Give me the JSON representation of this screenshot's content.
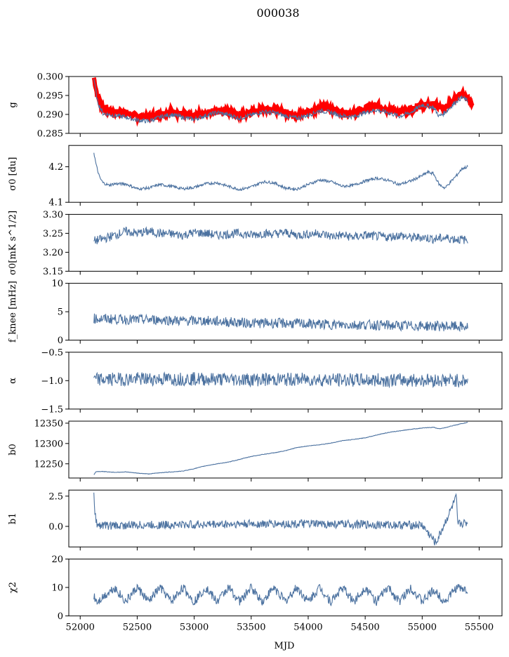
{
  "figure": {
    "title": "000038",
    "xlabel": "MJD",
    "xlim": [
      51900,
      55700
    ],
    "xticks": [
      52000,
      52500,
      53000,
      53500,
      54000,
      54500,
      55000,
      55500
    ],
    "colors": {
      "line": "#4c72a0",
      "overlay": "#ff0000",
      "axes": "#000000"
    }
  },
  "chart_data": [
    {
      "type": "line",
      "ylabel": "g",
      "ylim": [
        0.285,
        0.3
      ],
      "yticks": [
        0.285,
        0.29,
        0.295,
        0.3
      ],
      "ytick_labels": [
        "0.285",
        "0.290",
        "0.295",
        "0.300"
      ],
      "series": [
        {
          "kind": "band",
          "x": [
            52120,
            52150,
            52200,
            52300,
            52400,
            52500,
            52600,
            52700,
            52800,
            52900,
            53000,
            53100,
            53200,
            53300,
            53400,
            53500,
            53600,
            53700,
            53800,
            53900,
            54000,
            54100,
            54200,
            54300,
            54400,
            54500,
            54600,
            54700,
            54800,
            54900,
            55000,
            55100,
            55200,
            55300,
            55350,
            55400,
            55440
          ],
          "y": [
            0.2997,
            0.295,
            0.2915,
            0.2908,
            0.2905,
            0.2895,
            0.2893,
            0.2902,
            0.2908,
            0.29,
            0.2895,
            0.2904,
            0.2912,
            0.2908,
            0.2898,
            0.2905,
            0.2915,
            0.2915,
            0.2905,
            0.2898,
            0.2907,
            0.2918,
            0.2915,
            0.2905,
            0.2902,
            0.2915,
            0.2922,
            0.2915,
            0.2905,
            0.2912,
            0.2925,
            0.2928,
            0.2915,
            0.2945,
            0.2955,
            0.294,
            0.293
          ]
        },
        {
          "kind": "line",
          "x": [
            52120,
            52150,
            52200,
            52300,
            52400,
            52500,
            52600,
            52700,
            52800,
            52900,
            53000,
            53100,
            53200,
            53300,
            53400,
            53500,
            53600,
            53700,
            53800,
            53900,
            54000,
            54100,
            54200,
            54300,
            54400,
            54500,
            54600,
            54700,
            54800,
            54900,
            55000,
            55100,
            55150,
            55200,
            55300,
            55350,
            55400
          ],
          "y": [
            0.2995,
            0.2935,
            0.2903,
            0.2897,
            0.2893,
            0.2885,
            0.2882,
            0.2893,
            0.29,
            0.2892,
            0.2887,
            0.2897,
            0.2905,
            0.2899,
            0.289,
            0.2898,
            0.2907,
            0.2905,
            0.2896,
            0.289,
            0.2898,
            0.291,
            0.2905,
            0.2896,
            0.2894,
            0.2905,
            0.2912,
            0.2905,
            0.2895,
            0.2905,
            0.2925,
            0.2918,
            0.2895,
            0.2905,
            0.2935,
            0.2945,
            0.2935
          ]
        }
      ]
    },
    {
      "type": "line",
      "ylabel": "σ0 [du]",
      "ylim": [
        4.1,
        4.26
      ],
      "yticks": [
        4.1,
        4.2
      ],
      "ytick_labels": [
        "4.1",
        "4.2"
      ],
      "series": [
        {
          "kind": "line",
          "x": [
            52120,
            52140,
            52170,
            52200,
            52250,
            52300,
            52400,
            52500,
            52600,
            52700,
            52800,
            52900,
            53000,
            53100,
            53200,
            53300,
            53400,
            53500,
            53600,
            53700,
            53800,
            53900,
            54000,
            54100,
            54200,
            54300,
            54400,
            54500,
            54600,
            54700,
            54800,
            54900,
            55000,
            55050,
            55100,
            55150,
            55200,
            55300,
            55350,
            55400
          ],
          "y": [
            4.24,
            4.205,
            4.17,
            4.155,
            4.148,
            4.152,
            4.152,
            4.138,
            4.14,
            4.15,
            4.145,
            4.138,
            4.142,
            4.152,
            4.155,
            4.145,
            4.136,
            4.143,
            4.158,
            4.155,
            4.14,
            4.137,
            4.15,
            4.163,
            4.158,
            4.145,
            4.148,
            4.16,
            4.168,
            4.162,
            4.15,
            4.16,
            4.175,
            4.185,
            4.18,
            4.15,
            4.14,
            4.175,
            4.195,
            4.2
          ]
        }
      ]
    },
    {
      "type": "line",
      "ylabel": "σ0[mK s^1/2]",
      "ylim": [
        3.15,
        3.3
      ],
      "yticks": [
        3.15,
        3.2,
        3.25,
        3.3
      ],
      "ytick_labels": [
        "3.15",
        "3.20",
        "3.25",
        "3.30"
      ],
      "series": [
        {
          "kind": "line",
          "x": [
            52120,
            52200,
            52300,
            52400,
            52500,
            52600,
            52700,
            52800,
            52900,
            53000,
            53100,
            53200,
            53300,
            53400,
            53500,
            53600,
            53700,
            53800,
            53900,
            54000,
            54100,
            54200,
            54300,
            54400,
            54500,
            54600,
            54700,
            54800,
            54900,
            55000,
            55100,
            55200,
            55300,
            55400
          ],
          "y": [
            3.23,
            3.235,
            3.245,
            3.255,
            3.25,
            3.255,
            3.25,
            3.248,
            3.245,
            3.252,
            3.25,
            3.245,
            3.248,
            3.25,
            3.245,
            3.25,
            3.248,
            3.252,
            3.245,
            3.248,
            3.25,
            3.242,
            3.245,
            3.24,
            3.245,
            3.242,
            3.24,
            3.245,
            3.238,
            3.24,
            3.235,
            3.238,
            3.235,
            3.232
          ]
        }
      ]
    },
    {
      "type": "line",
      "ylabel": "f_knee [mHz]",
      "ylim": [
        0,
        10
      ],
      "yticks": [
        0,
        5,
        10
      ],
      "ytick_labels": [
        "0",
        "5",
        "10"
      ],
      "series": [
        {
          "kind": "line",
          "x": [
            52120,
            52300,
            52500,
            52700,
            52900,
            53100,
            53300,
            53500,
            53700,
            53900,
            54100,
            54300,
            54500,
            54700,
            54900,
            55100,
            55300,
            55400
          ],
          "y": [
            3.8,
            3.7,
            3.6,
            3.6,
            3.4,
            3.4,
            3.2,
            3.0,
            3.0,
            2.9,
            2.8,
            2.7,
            2.7,
            2.6,
            2.5,
            2.5,
            2.4,
            2.3
          ]
        }
      ]
    },
    {
      "type": "line",
      "ylabel": "α",
      "ylim": [
        -1.5,
        -0.5
      ],
      "yticks": [
        -1.5,
        -1.0,
        -0.5
      ],
      "ytick_labels": [
        "−1.5",
        "−1.0",
        "−0.5"
      ],
      "series": [
        {
          "kind": "line",
          "x": [
            52120,
            52500,
            53000,
            53500,
            54000,
            54500,
            55000,
            55400
          ],
          "y": [
            -0.98,
            -0.97,
            -0.97,
            -0.98,
            -0.98,
            -0.99,
            -0.99,
            -1.0
          ]
        }
      ]
    },
    {
      "type": "line",
      "ylabel": "b0",
      "ylim": [
        12215,
        12355
      ],
      "yticks": [
        12250,
        12300,
        12350
      ],
      "ytick_labels": [
        "12250",
        "12300",
        "12350"
      ],
      "series": [
        {
          "kind": "line",
          "x": [
            52120,
            52140,
            52200,
            52300,
            52400,
            52500,
            52600,
            52700,
            52800,
            52900,
            53000,
            53100,
            53200,
            53300,
            53400,
            53500,
            53600,
            53700,
            53800,
            53900,
            54000,
            54100,
            54200,
            54300,
            54400,
            54500,
            54600,
            54700,
            54800,
            54900,
            55000,
            55100,
            55150,
            55200,
            55300,
            55400
          ],
          "y": [
            12223,
            12231,
            12231,
            12229,
            12230,
            12227,
            12225,
            12228,
            12230,
            12232,
            12238,
            12245,
            12250,
            12254,
            12261,
            12268,
            12273,
            12277,
            12282,
            12290,
            12294,
            12297,
            12301,
            12307,
            12310,
            12314,
            12321,
            12327,
            12331,
            12335,
            12338,
            12340,
            12336,
            12339,
            12346,
            12352
          ]
        }
      ]
    },
    {
      "type": "line",
      "ylabel": "b1",
      "ylim": [
        -1.7,
        3.0
      ],
      "yticks": [
        0.0,
        2.5
      ],
      "ytick_labels": [
        "0.0",
        "2.5"
      ],
      "series": [
        {
          "kind": "line",
          "x": [
            52120,
            52130,
            52150,
            52300,
            52500,
            53000,
            53500,
            54000,
            54500,
            55000,
            55120,
            55300,
            55310,
            55400
          ],
          "y": [
            2.7,
            1.0,
            0.1,
            0.05,
            0.1,
            0.15,
            0.2,
            0.2,
            0.15,
            0.1,
            -1.4,
            2.4,
            0.2,
            0.3
          ]
        }
      ]
    },
    {
      "type": "line",
      "ylabel": "χ2",
      "ylim": [
        0,
        20
      ],
      "yticks": [
        0,
        10,
        20
      ],
      "ytick_labels": [
        "0",
        "10",
        "20"
      ],
      "series": [
        {
          "kind": "line",
          "x": [
            52120,
            52150,
            52300,
            52400,
            52500,
            52600,
            52700,
            52800,
            52900,
            53000,
            53100,
            53200,
            53300,
            53400,
            53500,
            53600,
            53700,
            53800,
            53900,
            54000,
            54100,
            54200,
            54300,
            54400,
            54500,
            54600,
            54700,
            54800,
            54900,
            55000,
            55100,
            55200,
            55300,
            55400
          ],
          "y": [
            7,
            5,
            10,
            5,
            10,
            5,
            10,
            5,
            10,
            5,
            10,
            5,
            10,
            5,
            10,
            5,
            10,
            5,
            10,
            5,
            10,
            5,
            10,
            5,
            10,
            5,
            10,
            5,
            10,
            5,
            9,
            5,
            10,
            9
          ]
        }
      ]
    }
  ]
}
